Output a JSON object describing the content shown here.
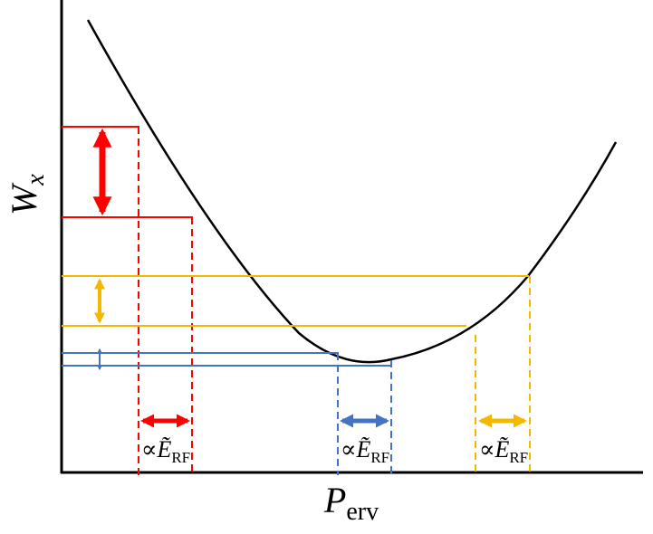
{
  "axes": {
    "y_label": {
      "main": "W",
      "sub": "x"
    },
    "x_label": {
      "main": "P",
      "sub": "erv"
    }
  },
  "annotations": [
    {
      "prefix": "∝",
      "symbol": "Ẽ",
      "sub": "RF"
    },
    {
      "prefix": "∝",
      "symbol": "Ẽ",
      "sub": "RF"
    },
    {
      "prefix": "∝",
      "symbol": "Ẽ",
      "sub": "RF"
    }
  ]
}
